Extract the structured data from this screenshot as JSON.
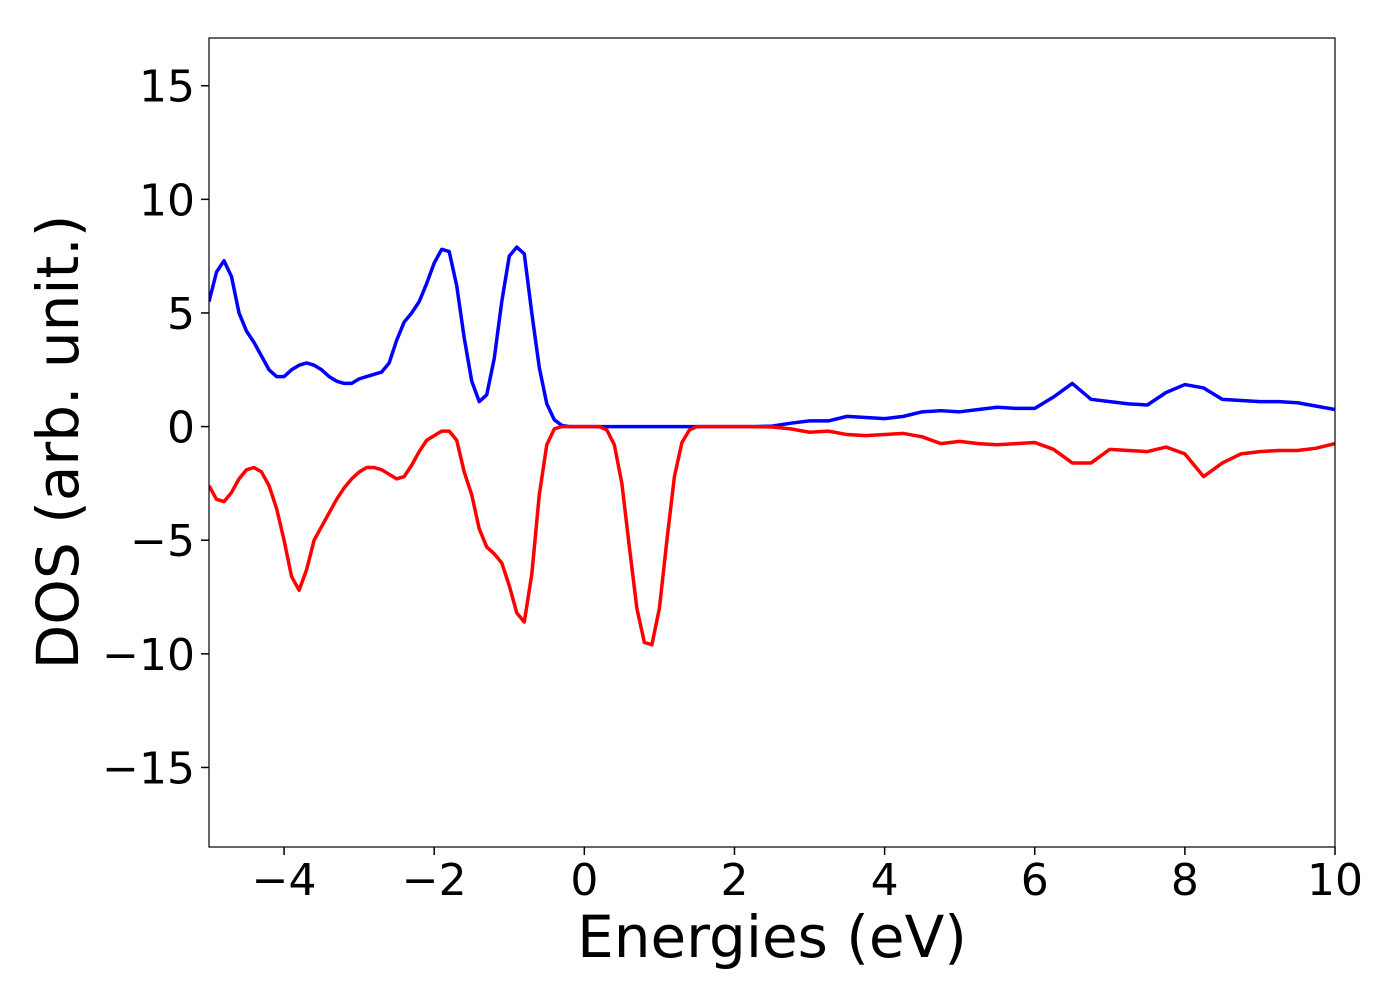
{
  "chart_data": {
    "type": "line",
    "xlabel": "Energies (eV)",
    "ylabel": "DOS (arb. unit.)",
    "x": [
      -5,
      -4.9,
      -4.8,
      -4.7,
      -4.6,
      -4.5,
      -4.4,
      -4.3,
      -4.2,
      -4.1,
      -4,
      -3.9,
      -3.8,
      -3.7,
      -3.6,
      -3.5,
      -3.4,
      -3.3,
      -3.2,
      -3.1,
      -3,
      -2.9,
      -2.8,
      -2.7,
      -2.6,
      -2.5,
      -2.4,
      -2.3,
      -2.2,
      -2.1,
      -2,
      -1.9,
      -1.8,
      -1.7,
      -1.6,
      -1.5,
      -1.4,
      -1.3,
      -1.2,
      -1.1,
      -1,
      -0.9,
      -0.8,
      -0.7,
      -0.6,
      -0.5,
      -0.4,
      -0.3,
      -0.2,
      -0.1,
      0,
      0.1,
      0.2,
      0.3,
      0.4,
      0.5,
      0.6,
      0.7,
      0.8,
      0.9,
      1,
      1.1,
      1.2,
      1.3,
      1.4,
      1.5,
      1.75,
      2,
      2.25,
      2.5,
      2.75,
      3,
      3.25,
      3.5,
      3.75,
      4,
      4.25,
      4.5,
      4.75,
      5,
      5.25,
      5.5,
      5.75,
      6,
      6.25,
      6.5,
      6.75,
      7,
      7.25,
      7.5,
      7.75,
      8,
      8.25,
      8.5,
      8.75,
      9,
      9.25,
      9.5,
      9.75,
      10
    ],
    "series": [
      {
        "color": "#0000ff",
        "values": [
          5.5,
          6.8,
          7.3,
          6.6,
          5.0,
          4.2,
          3.7,
          3.1,
          2.5,
          2.2,
          2.2,
          2.5,
          2.7,
          2.8,
          2.7,
          2.5,
          2.2,
          2.0,
          1.9,
          1.9,
          2.1,
          2.2,
          2.3,
          2.4,
          2.8,
          3.8,
          4.6,
          5.0,
          5.5,
          6.3,
          7.2,
          7.8,
          7.7,
          6.2,
          3.9,
          2.0,
          1.1,
          1.4,
          3.0,
          5.5,
          7.5,
          7.9,
          7.6,
          5.0,
          2.6,
          1.0,
          0.3,
          0.05,
          0,
          0,
          0,
          0,
          0,
          0,
          0,
          0,
          0,
          0,
          0,
          0,
          0,
          0,
          0,
          0,
          0,
          0,
          0,
          0,
          0,
          0.02,
          0.15,
          0.25,
          0.25,
          0.45,
          0.4,
          0.35,
          0.45,
          0.65,
          0.7,
          0.65,
          0.75,
          0.85,
          0.8,
          0.8,
          1.3,
          1.9,
          1.2,
          1.1,
          1.0,
          0.95,
          1.5,
          1.85,
          1.7,
          1.2,
          1.15,
          1.1,
          1.1,
          1.05,
          0.9,
          0.75
        ]
      },
      {
        "color": "#ff0000",
        "values": [
          -2.6,
          -3.2,
          -3.3,
          -2.9,
          -2.3,
          -1.9,
          -1.8,
          -2.0,
          -2.6,
          -3.6,
          -5.0,
          -6.6,
          -7.2,
          -6.3,
          -5.0,
          -4.4,
          -3.8,
          -3.2,
          -2.7,
          -2.3,
          -2.0,
          -1.8,
          -1.8,
          -1.9,
          -2.1,
          -2.3,
          -2.2,
          -1.7,
          -1.1,
          -0.6,
          -0.4,
          -0.2,
          -0.2,
          -0.6,
          -2.0,
          -3.0,
          -4.5,
          -5.3,
          -5.6,
          -6.0,
          -7.0,
          -8.2,
          -8.6,
          -6.5,
          -3.0,
          -0.8,
          -0.1,
          0,
          0,
          0,
          0,
          0,
          0,
          -0.15,
          -0.8,
          -2.5,
          -5.3,
          -8.0,
          -9.5,
          -9.6,
          -8.0,
          -5.0,
          -2.2,
          -0.7,
          -0.15,
          0,
          0,
          0,
          0,
          -0.02,
          -0.1,
          -0.25,
          -0.2,
          -0.35,
          -0.4,
          -0.35,
          -0.3,
          -0.45,
          -0.75,
          -0.65,
          -0.75,
          -0.8,
          -0.75,
          -0.7,
          -1.0,
          -1.6,
          -1.6,
          -1.0,
          -1.05,
          -1.1,
          -0.9,
          -1.2,
          -2.2,
          -1.6,
          -1.2,
          -1.1,
          -1.05,
          -1.05,
          -0.95,
          -0.75
        ]
      }
    ],
    "xlim": [
      -5,
      10
    ],
    "ylim": [
      -18.5,
      17.1
    ],
    "xticks": [
      {
        "value": -4,
        "label": "−4"
      },
      {
        "value": -2,
        "label": "−2"
      },
      0,
      2,
      4,
      6,
      8,
      10
    ],
    "yticks": [
      {
        "value": -15,
        "label": "−15"
      },
      {
        "value": -10,
        "label": "−10"
      },
      {
        "value": -5,
        "label": "−5"
      },
      0,
      5,
      10,
      15
    ],
    "grid": false
  }
}
